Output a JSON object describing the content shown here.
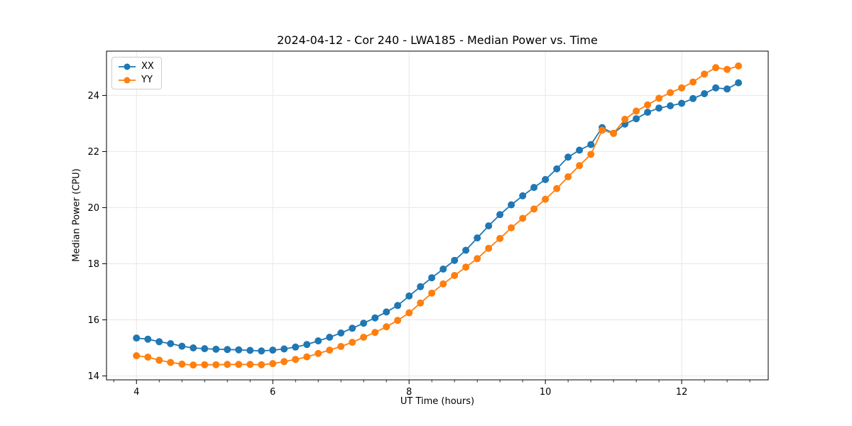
{
  "chart_data": {
    "type": "line",
    "title": "2024-04-12 - Cor 240 - LWA185 - Median Power vs. Time",
    "xlabel": "UT Time (hours)",
    "ylabel": "Median Power (CPU)",
    "xlim": [
      3.56,
      13.27
    ],
    "ylim": [
      13.86,
      25.58
    ],
    "xticks": [
      4,
      6,
      8,
      10,
      12
    ],
    "yticks": [
      14,
      16,
      18,
      20,
      22,
      24
    ],
    "x_minor_step": 0.33333,
    "grid": true,
    "grid_color": "#e7e7e7",
    "legend_position": "upper-left",
    "x": [
      4.0,
      4.167,
      4.333,
      4.5,
      4.667,
      4.833,
      5.0,
      5.167,
      5.333,
      5.5,
      5.667,
      5.833,
      6.0,
      6.167,
      6.333,
      6.5,
      6.667,
      6.833,
      7.0,
      7.167,
      7.333,
      7.5,
      7.667,
      7.833,
      8.0,
      8.167,
      8.333,
      8.5,
      8.667,
      8.833,
      9.0,
      9.167,
      9.333,
      9.5,
      9.667,
      9.833,
      10.0,
      10.167,
      10.333,
      10.5,
      10.667,
      10.833,
      11.0,
      11.167,
      11.333,
      11.5,
      11.667,
      11.833,
      12.0,
      12.167,
      12.333,
      12.5,
      12.667,
      12.833
    ],
    "series": [
      {
        "name": "XX",
        "color": "#1f77b4",
        "values": [
          15.35,
          15.31,
          15.22,
          15.15,
          15.06,
          15.0,
          14.97,
          14.95,
          14.94,
          14.93,
          14.91,
          14.89,
          14.92,
          14.96,
          15.03,
          15.12,
          15.25,
          15.38,
          15.53,
          15.7,
          15.88,
          16.07,
          16.28,
          16.51,
          16.85,
          17.18,
          17.5,
          17.81,
          18.12,
          18.48,
          18.92,
          19.35,
          19.75,
          20.1,
          20.42,
          20.72,
          21.0,
          21.38,
          21.8,
          22.05,
          22.25,
          22.85,
          22.65,
          22.98,
          23.17,
          23.4,
          23.55,
          23.63,
          23.72,
          23.89,
          24.06,
          24.27,
          24.23,
          24.45
        ]
      },
      {
        "name": "YY",
        "color": "#ff7f0e",
        "values": [
          14.72,
          14.67,
          14.56,
          14.48,
          14.42,
          14.39,
          14.4,
          14.4,
          14.41,
          14.41,
          14.41,
          14.4,
          14.44,
          14.51,
          14.59,
          14.68,
          14.8,
          14.92,
          15.05,
          15.2,
          15.38,
          15.55,
          15.75,
          15.98,
          16.25,
          16.6,
          16.95,
          17.28,
          17.58,
          17.88,
          18.18,
          18.55,
          18.9,
          19.28,
          19.62,
          19.95,
          20.3,
          20.68,
          21.1,
          21.5,
          21.9,
          22.76,
          22.65,
          23.15,
          23.44,
          23.66,
          23.9,
          24.1,
          24.27,
          24.48,
          24.76,
          24.99,
          24.93,
          25.05
        ]
      }
    ]
  }
}
